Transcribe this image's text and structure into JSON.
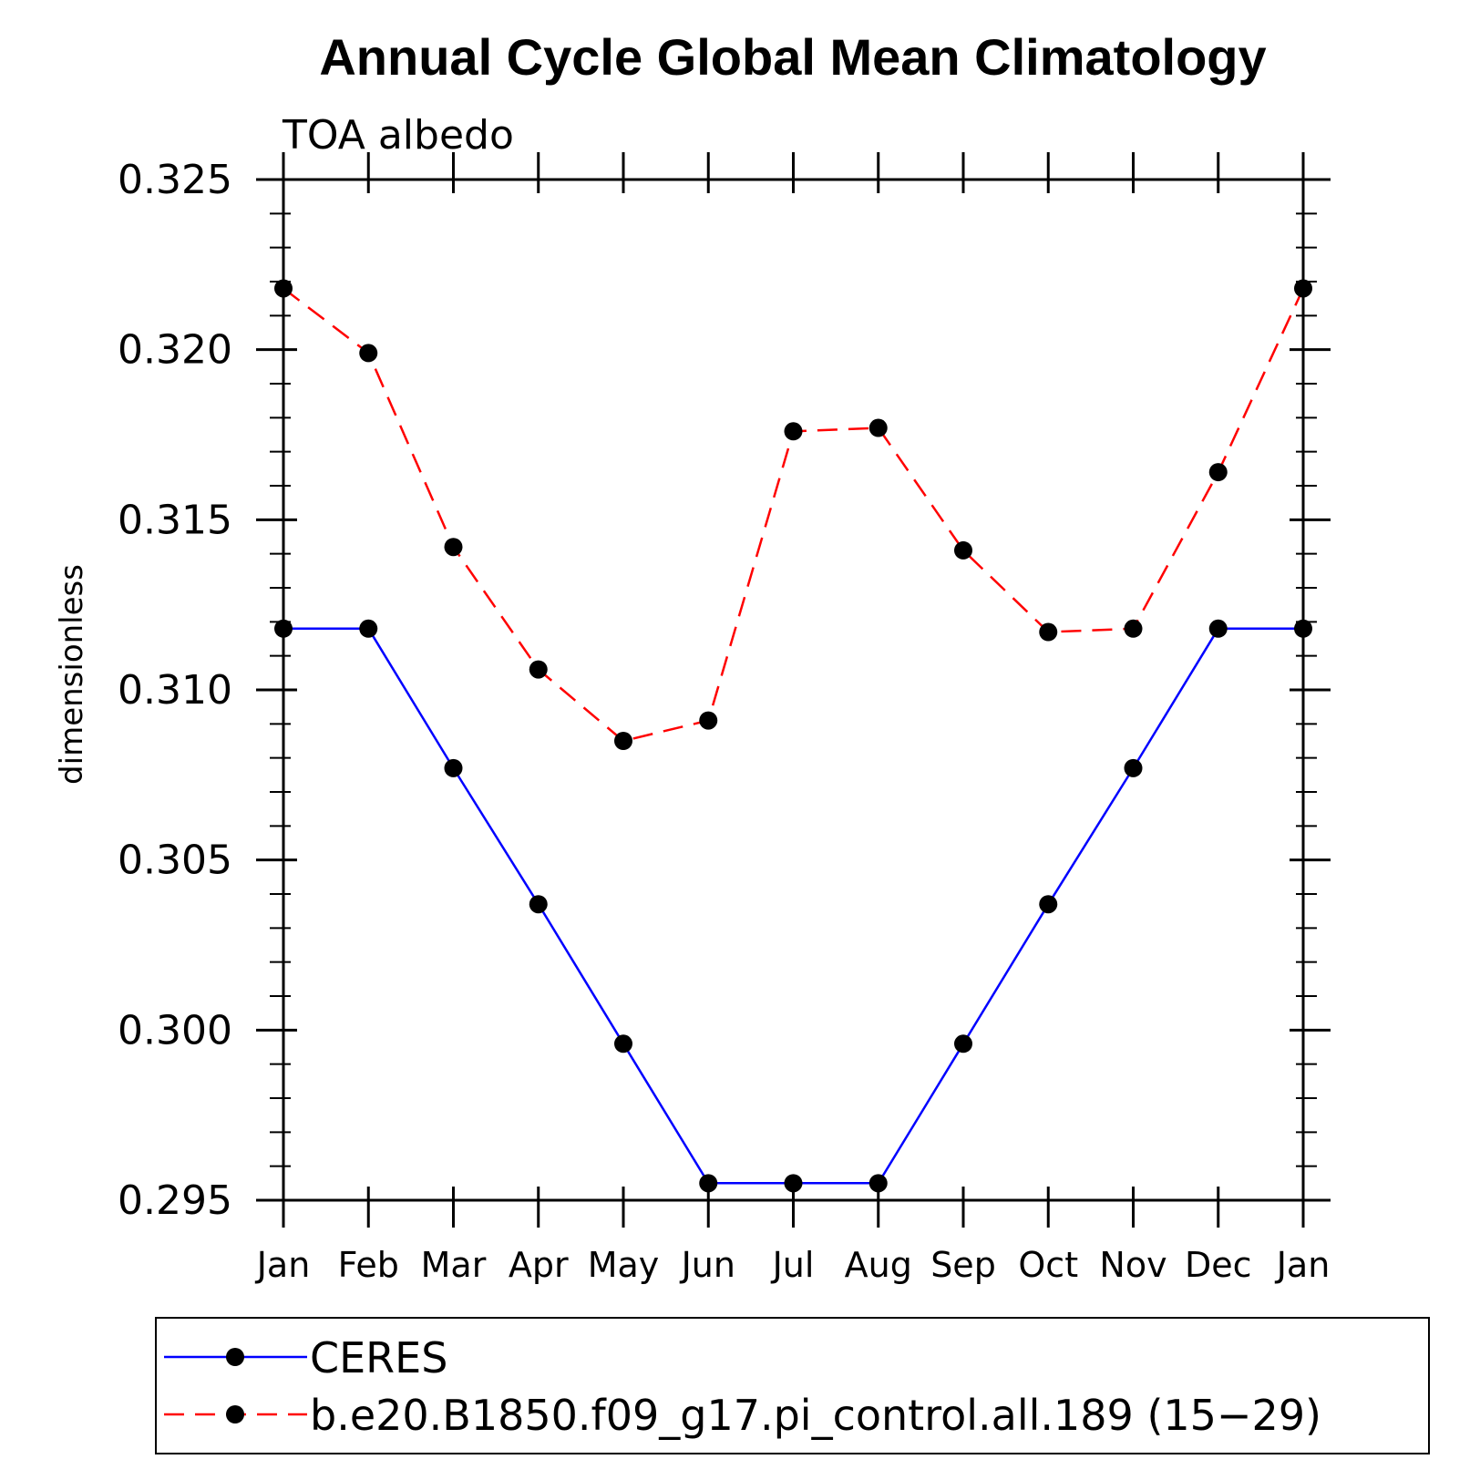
{
  "chart_data": {
    "type": "line",
    "title": "Annual Cycle Global Mean Climatology",
    "subtitle": "TOA albedo",
    "xlabel": "",
    "ylabel": "dimensionless",
    "categories": [
      "Jan",
      "Feb",
      "Mar",
      "Apr",
      "May",
      "Jun",
      "Jul",
      "Aug",
      "Sep",
      "Oct",
      "Nov",
      "Dec",
      "Jan"
    ],
    "yticks": [
      "0.295",
      "0.300",
      "0.305",
      "0.310",
      "0.315",
      "0.320",
      "0.325"
    ],
    "ylim": [
      0.295,
      0.325
    ],
    "legend_position": "bottom",
    "series": [
      {
        "name": "CERES",
        "color": "#0000ff",
        "style": "solid",
        "values": [
          0.3118,
          0.3118,
          0.3077,
          0.3037,
          0.2996,
          0.2955,
          0.2955,
          0.2955,
          0.2996,
          0.3037,
          0.3077,
          0.3118,
          0.3118
        ]
      },
      {
        "name": "b.e20.B1850.f09_g17.pi_control.all.189 (15−29)",
        "color": "#ff0000",
        "style": "dashed",
        "values": [
          0.3218,
          0.3199,
          0.3142,
          0.3106,
          0.3085,
          0.3091,
          0.3176,
          0.3177,
          0.3141,
          0.3117,
          0.3118,
          0.3164,
          0.3218
        ]
      }
    ]
  }
}
